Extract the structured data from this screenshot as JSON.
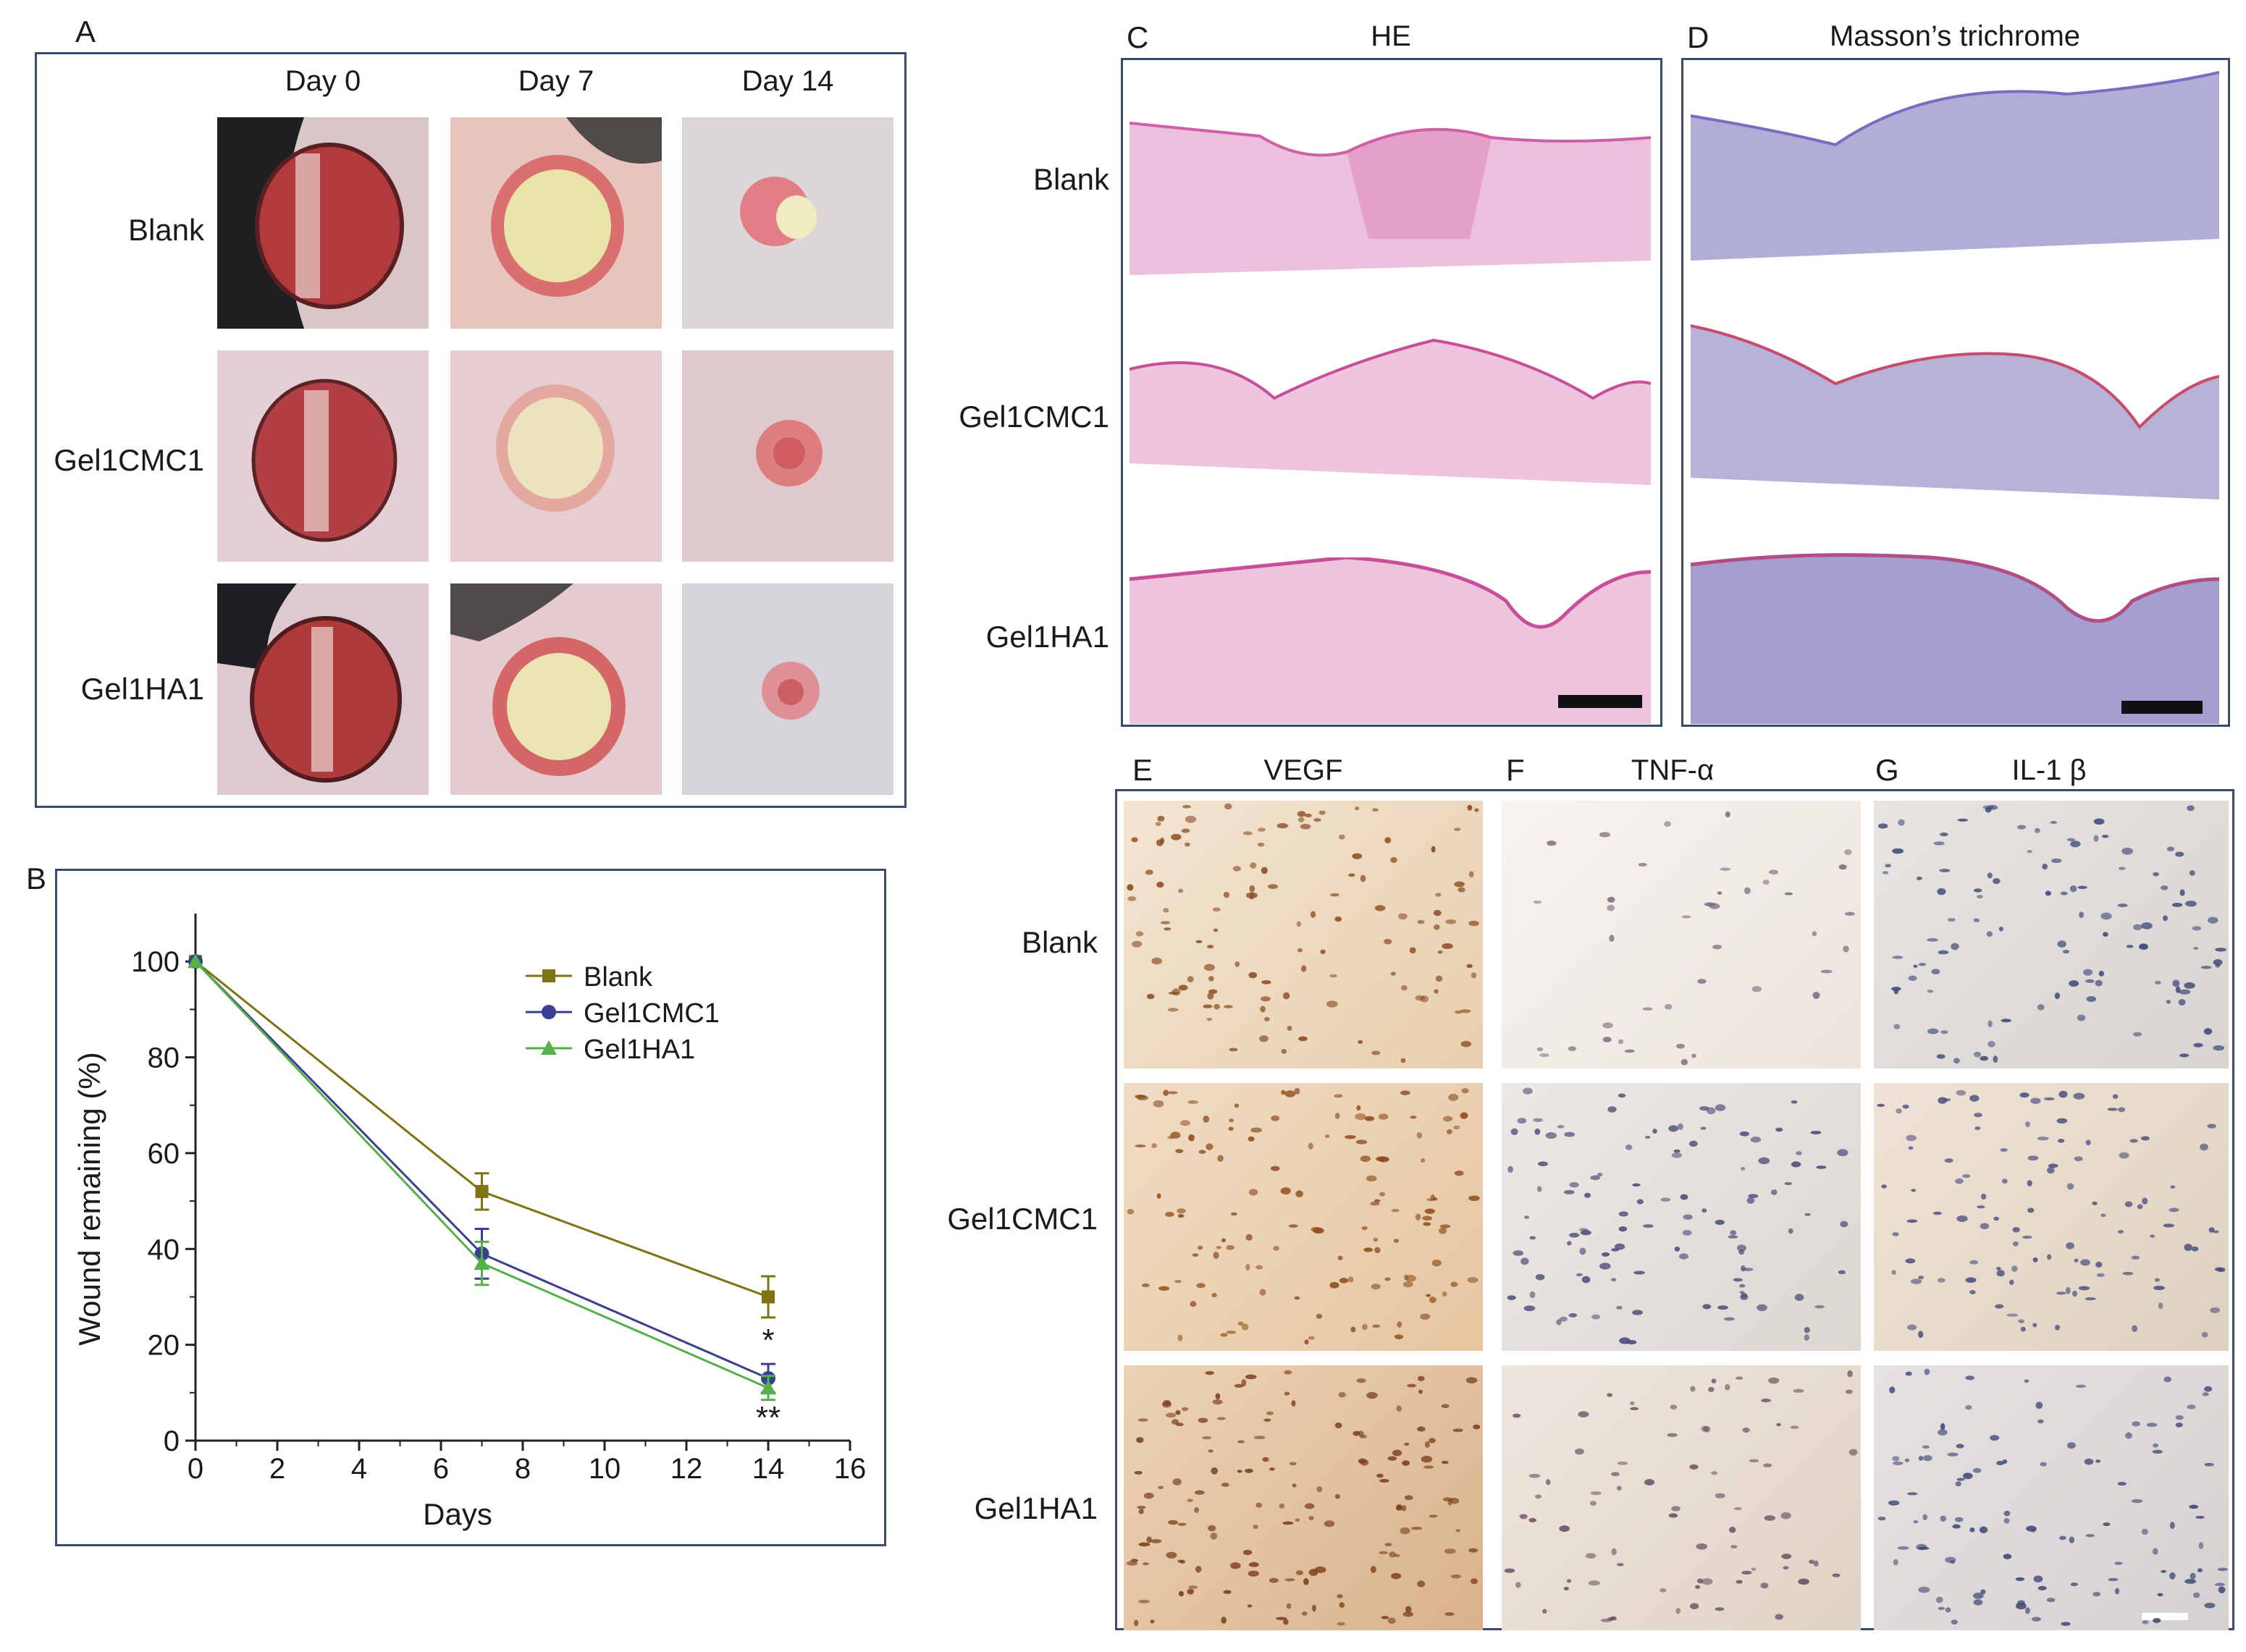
{
  "panel_a": {
    "letter": "A",
    "columns": [
      "Day 0",
      "Day 7",
      "Day 14"
    ],
    "rows": [
      "Blank",
      "Gel1CMC1",
      "Gel1HA1"
    ]
  },
  "panel_b": {
    "letter": "B"
  },
  "panel_c": {
    "letter": "C",
    "title": "HE",
    "rows": [
      "Blank",
      "Gel1CMC1",
      "Gel1HA1"
    ]
  },
  "panel_d": {
    "letter": "D",
    "title": "Masson’s trichrome"
  },
  "ihc": {
    "letters": [
      "E",
      "F",
      "G"
    ],
    "titles": [
      "VEGF",
      "TNF-α",
      "IL-1 β"
    ],
    "rows": [
      "Blank",
      "Gel1CMC1",
      "Gel1HA1"
    ]
  },
  "colors": {
    "frame": "#3b4a6b",
    "blank": "#807313",
    "gel1cmc1": "#3a3f93",
    "gel1ha1": "#56b04a",
    "he_stain": "#e7a6cf",
    "masson_stain": "#a8a2cf",
    "vegf": "#c98d55",
    "tnf": "#e9e3dd",
    "il1b": "#d8d6d4"
  },
  "chart_data": {
    "type": "line",
    "xlabel": "Days",
    "ylabel": "Wound remaining (%)",
    "xlim": [
      0,
      16
    ],
    "ylim": [
      0,
      110
    ],
    "xticks": [
      0,
      2,
      4,
      6,
      8,
      10,
      12,
      14,
      16
    ],
    "yticks": [
      0,
      20,
      40,
      60,
      80,
      100
    ],
    "legend_position": "top-right",
    "x": [
      0,
      7,
      14
    ],
    "series": [
      {
        "name": "Blank",
        "values": [
          100,
          52,
          30
        ],
        "errors": [
          0,
          3.8,
          4.3
        ],
        "marker": "square"
      },
      {
        "name": "Gel1CMC1",
        "values": [
          100,
          39,
          13
        ],
        "errors": [
          0,
          5.2,
          3.0
        ],
        "marker": "circle"
      },
      {
        "name": "Gel1HA1",
        "values": [
          100,
          37,
          11
        ],
        "errors": [
          0,
          4.5,
          2.5
        ],
        "marker": "triangle"
      }
    ],
    "annotations": [
      {
        "text": "*",
        "x": 14,
        "series": "Gel1CMC1"
      },
      {
        "text": "**",
        "x": 14,
        "series": "Gel1HA1"
      }
    ]
  }
}
